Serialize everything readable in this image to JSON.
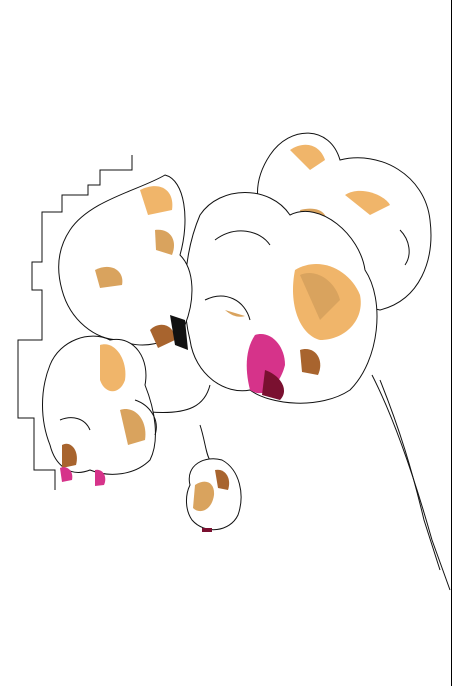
{
  "image": {
    "subject": "orchid",
    "colors": {
      "background": "#ffffff",
      "outline": "#111111",
      "peach": "#f0b56a",
      "tan": "#d9a35e",
      "brown": "#a8642e",
      "pink": "#d6338a",
      "maroon": "#7a1030"
    }
  }
}
